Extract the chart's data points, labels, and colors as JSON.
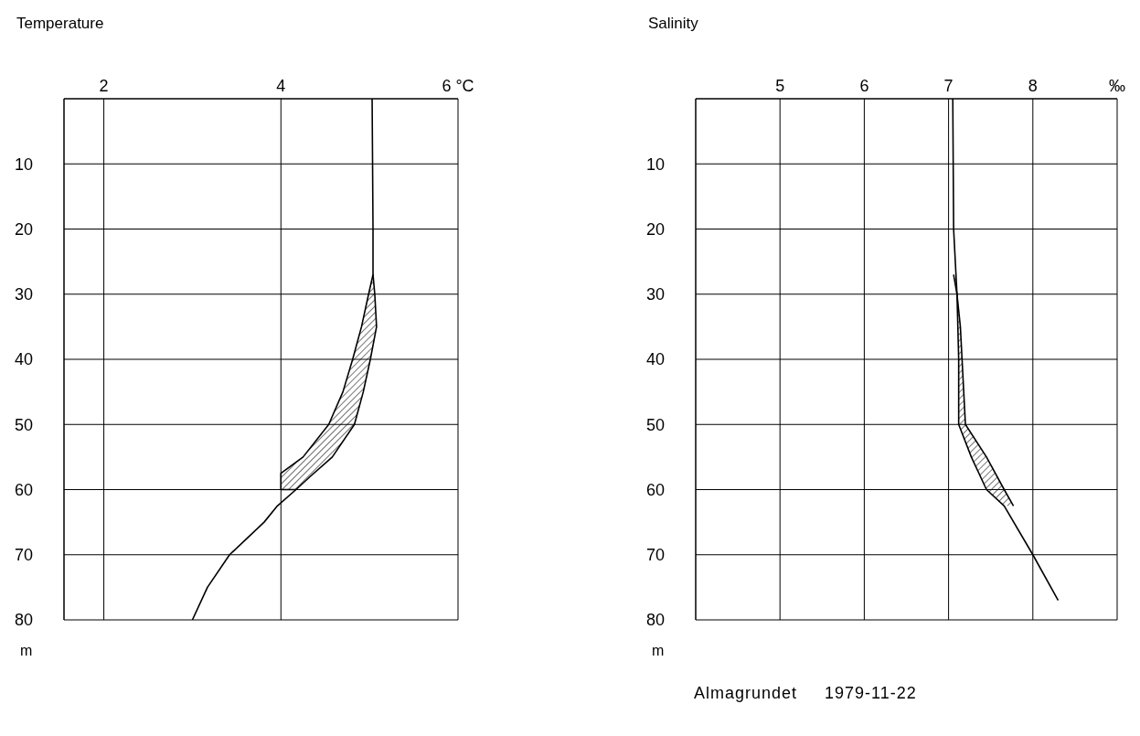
{
  "chart_data": [
    {
      "type": "line",
      "title": "Temperature",
      "ylabel": "m",
      "xlim": [
        1.55,
        6
      ],
      "xticks": [
        2,
        4,
        {
          "value": 6,
          "label": "6 °C"
        }
      ],
      "ylim": [
        80,
        0
      ],
      "yticks": [
        10,
        20,
        30,
        40,
        50,
        60,
        70,
        80
      ],
      "grid": true,
      "legend": false,
      "marker": "none",
      "line_style": "solid",
      "series": [
        {
          "type": "line",
          "color": "#000000",
          "x": [
            5.03,
            5.04,
            5.04,
            5.06,
            5.08,
            5.01,
            4.93,
            4.83,
            4.58,
            4.33,
            4.17,
            3.96,
            3.81,
            3.42,
            3.17,
            3.0
          ],
          "values": [
            0,
            20,
            27,
            30,
            35,
            40,
            45,
            50,
            55,
            58,
            60,
            62.5,
            65,
            70,
            75,
            80
          ]
        },
        {
          "type": "line",
          "color": "#000000",
          "x": [
            5.04,
            4.99,
            4.91,
            4.81,
            4.7,
            4.54,
            4.25,
            4.0,
            4.0,
            4.17
          ],
          "values": [
            27,
            30,
            35,
            40,
            45,
            50,
            55,
            57.5,
            60,
            60
          ]
        }
      ]
    },
    {
      "type": "line",
      "title": "Salinity",
      "ylabel": "m",
      "xlim": [
        4,
        9
      ],
      "xticks": [
        5,
        6,
        7,
        8,
        {
          "value": 9,
          "label": "‰"
        }
      ],
      "ylim": [
        80,
        0
      ],
      "yticks": [
        10,
        20,
        30,
        40,
        50,
        60,
        70,
        80
      ],
      "grid": true,
      "legend": false,
      "marker": "none",
      "line_style": "solid",
      "annotations": [
        "Almagrundet     1979-11-22"
      ],
      "series": [
        {
          "type": "line",
          "color": "#000000",
          "x": [
            7.05,
            7.06,
            7.1,
            7.12,
            7.12,
            7.27,
            7.45,
            7.66,
            8.0,
            8.3
          ],
          "values": [
            0,
            20,
            30,
            40,
            50,
            55,
            60,
            62.5,
            70,
            77
          ]
        },
        {
          "type": "line",
          "color": "#000000",
          "x": [
            7.06,
            7.1,
            7.14,
            7.16,
            7.18,
            7.2,
            7.45,
            7.66,
            7.77
          ],
          "values": [
            27,
            30,
            35,
            40,
            45,
            50,
            55,
            60,
            62.5
          ]
        }
      ]
    }
  ]
}
